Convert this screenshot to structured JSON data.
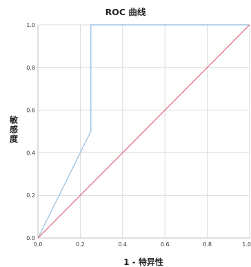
{
  "chart_data": {
    "type": "line",
    "title": "ROC 曲线",
    "xlabel": "1 - 特异性",
    "ylabel": "敏感度",
    "xlim": [
      0.0,
      1.0
    ],
    "ylim": [
      0.0,
      1.0
    ],
    "x_ticks": [
      "0.0",
      "0.2",
      "0.4",
      "0.6",
      "0.8",
      "1.0"
    ],
    "y_ticks": [
      "0.0",
      "0.2",
      "0.4",
      "0.6",
      "0.8",
      "1.0"
    ],
    "grid": true,
    "series": [
      {
        "color": "#9dc3e6",
        "points": [
          [
            0.0,
            0.0
          ],
          [
            0.25,
            0.5
          ],
          [
            0.25,
            1.0
          ],
          [
            1.0,
            1.0
          ]
        ]
      },
      {
        "color": "#e07b8a",
        "points": [
          [
            0.0,
            0.0
          ],
          [
            1.0,
            1.0
          ]
        ]
      }
    ]
  }
}
